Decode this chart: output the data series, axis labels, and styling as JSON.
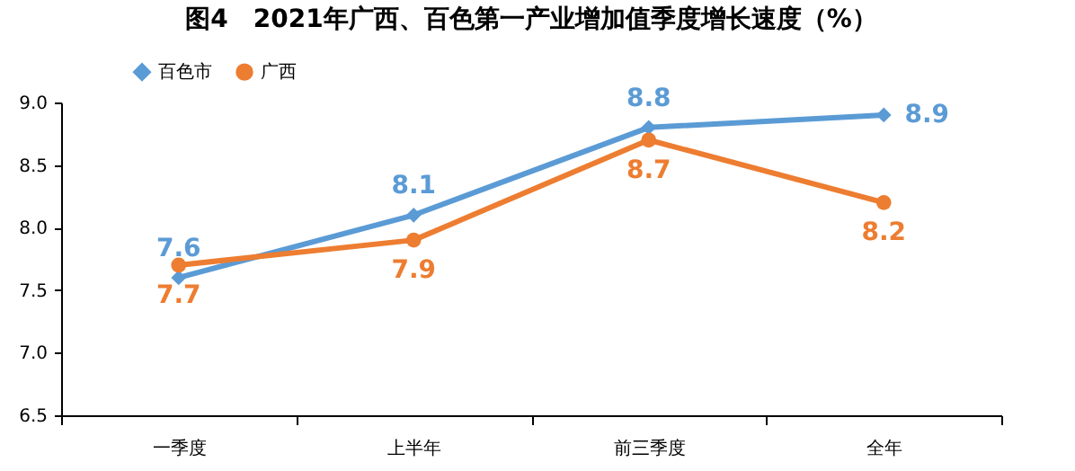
{
  "chart_data": {
    "type": "line",
    "title": "图4　2021年广西、百色第一产业增加值季度增长速度（%）",
    "categories": [
      "一季度",
      "上半年",
      "前三季度",
      "全年"
    ],
    "series": [
      {
        "name": "百色市",
        "color": "#5b9bd5",
        "marker": "diamond",
        "values": [
          7.6,
          8.1,
          8.8,
          8.9
        ]
      },
      {
        "name": "广西",
        "color": "#ed7d31",
        "marker": "circle",
        "values": [
          7.7,
          7.9,
          8.7,
          8.2
        ]
      }
    ],
    "ylim": [
      6.5,
      9.0
    ],
    "yticks": [
      6.5,
      {
        "value": 7,
        "label": "7.0"
      },
      7.5,
      {
        "value": 8,
        "label": "8.0"
      },
      8.5,
      {
        "value": 9,
        "label": "9.0"
      }
    ],
    "data_labels": true,
    "grid": false,
    "legend": "top left",
    "line_style": "solid"
  }
}
